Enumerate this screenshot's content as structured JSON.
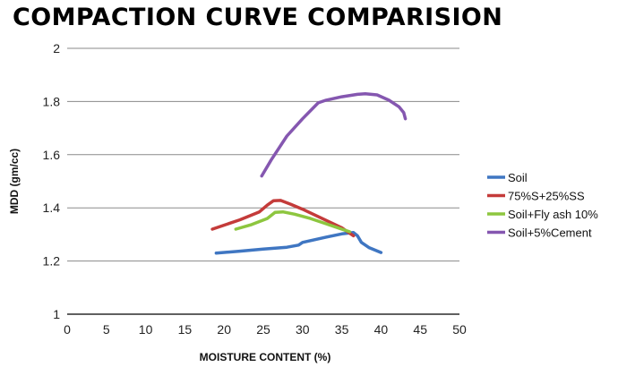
{
  "chart_data": {
    "type": "line",
    "title": "COMPACTION CURVE COMPARISION",
    "xlabel": "MOISTURE CONTENT (%)",
    "ylabel": "MDD (gm/cc)",
    "xlim": [
      0,
      50
    ],
    "ylim": [
      1,
      2
    ],
    "x_ticks": [
      "0",
      "5",
      "10",
      "15",
      "20",
      "25",
      "30",
      "35",
      "40",
      "45",
      "50"
    ],
    "y_ticks": [
      "1",
      "1.2",
      "1.4",
      "1.6",
      "1.8",
      "2"
    ],
    "grid": "horizontal",
    "legend": "right",
    "series": [
      {
        "name": "Soil",
        "color": "#3f76c2",
        "points": [
          [
            19,
            1.23
          ],
          [
            22,
            1.237
          ],
          [
            25,
            1.245
          ],
          [
            28,
            1.252
          ],
          [
            29.5,
            1.26
          ],
          [
            30,
            1.27
          ],
          [
            33,
            1.29
          ],
          [
            35,
            1.302
          ],
          [
            36.5,
            1.307
          ],
          [
            37,
            1.295
          ],
          [
            37.5,
            1.27
          ],
          [
            38.5,
            1.25
          ],
          [
            40,
            1.232
          ]
        ]
      },
      {
        "name": "75%S+25%SS",
        "color": "#c43b3a",
        "points": [
          [
            18.5,
            1.32
          ],
          [
            22,
            1.355
          ],
          [
            24.5,
            1.385
          ],
          [
            25.5,
            1.41
          ],
          [
            26.3,
            1.427
          ],
          [
            27.2,
            1.428
          ],
          [
            28.5,
            1.413
          ],
          [
            30,
            1.395
          ],
          [
            32.5,
            1.36
          ],
          [
            35,
            1.325
          ],
          [
            36.5,
            1.295
          ]
        ]
      },
      {
        "name": "Soil+Fly ash 10%",
        "color": "#8dc63f",
        "points": [
          [
            21.5,
            1.32
          ],
          [
            23.5,
            1.337
          ],
          [
            25.5,
            1.36
          ],
          [
            26.5,
            1.383
          ],
          [
            27.5,
            1.385
          ],
          [
            29,
            1.376
          ],
          [
            31,
            1.36
          ],
          [
            33,
            1.34
          ],
          [
            35,
            1.32
          ],
          [
            36,
            1.31
          ]
        ]
      },
      {
        "name": "Soil+5%Cement",
        "color": "#8557b0",
        "points": [
          [
            24.8,
            1.52
          ],
          [
            26,
            1.58
          ],
          [
            28,
            1.67
          ],
          [
            30,
            1.735
          ],
          [
            32,
            1.795
          ],
          [
            33,
            1.805
          ],
          [
            35,
            1.818
          ],
          [
            37,
            1.827
          ],
          [
            38,
            1.829
          ],
          [
            39.5,
            1.825
          ],
          [
            41,
            1.805
          ],
          [
            42.3,
            1.78
          ],
          [
            42.9,
            1.758
          ],
          [
            43.1,
            1.735
          ]
        ]
      }
    ]
  }
}
